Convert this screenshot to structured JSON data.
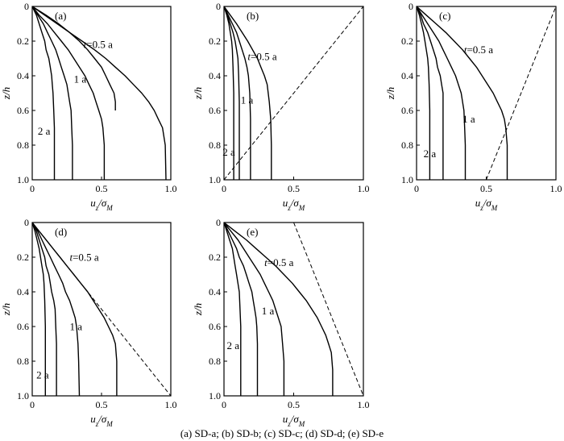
{
  "chart_data": [
    {
      "type": "line",
      "panel_label": "(a)",
      "xlabel": "u_z/σ_M",
      "ylabel": "z/h",
      "xlim": [
        0,
        1.0
      ],
      "ylim": [
        0,
        1.0
      ],
      "y_inverted": true,
      "xticks": [
        "0",
        "0.5",
        "1.0"
      ],
      "yticks": [
        "0",
        "0.2",
        "0.4",
        "0.6",
        "0.8",
        "1.0"
      ],
      "series": [
        {
          "x": [
            0,
            0.1,
            0.19,
            0.27,
            0.34,
            0.4,
            0.45,
            0.5,
            0.53,
            0.56,
            0.59,
            0.6,
            0.6
          ],
          "y": [
            0,
            0.05,
            0.1,
            0.15,
            0.2,
            0.25,
            0.3,
            0.35,
            0.4,
            0.45,
            0.5,
            0.55,
            0.6
          ]
        },
        {
          "x": [
            0,
            0.09,
            0.18,
            0.27,
            0.36,
            0.45,
            0.53,
            0.6,
            0.67,
            0.73,
            0.79,
            0.84,
            0.88,
            0.91,
            0.94,
            0.96,
            0.965
          ],
          "y": [
            0,
            0.05,
            0.1,
            0.15,
            0.2,
            0.25,
            0.3,
            0.35,
            0.4,
            0.45,
            0.5,
            0.55,
            0.6,
            0.65,
            0.7,
            0.8,
            1.0
          ]
        },
        {
          "x": [
            0,
            0.05,
            0.11,
            0.16,
            0.21,
            0.26,
            0.3,
            0.34,
            0.38,
            0.41,
            0.44,
            0.46,
            0.48,
            0.5,
            0.51,
            0.52,
            0.52
          ],
          "y": [
            0,
            0.05,
            0.1,
            0.15,
            0.2,
            0.25,
            0.3,
            0.35,
            0.4,
            0.45,
            0.5,
            0.55,
            0.6,
            0.65,
            0.7,
            0.8,
            1.0
          ]
        },
        {
          "x": [
            0,
            0.04,
            0.08,
            0.11,
            0.14,
            0.17,
            0.19,
            0.21,
            0.23,
            0.25,
            0.26,
            0.27,
            0.28,
            0.285,
            0.29,
            0.29
          ],
          "y": [
            0,
            0.05,
            0.1,
            0.15,
            0.2,
            0.25,
            0.3,
            0.35,
            0.4,
            0.45,
            0.5,
            0.55,
            0.6,
            0.7,
            0.8,
            1.0
          ]
        },
        {
          "x": [
            0,
            0.03,
            0.05,
            0.07,
            0.09,
            0.1,
            0.12,
            0.13,
            0.14,
            0.145,
            0.15,
            0.155,
            0.16,
            0.16
          ],
          "y": [
            0,
            0.05,
            0.1,
            0.15,
            0.2,
            0.25,
            0.3,
            0.35,
            0.4,
            0.45,
            0.5,
            0.6,
            0.7,
            1.0
          ]
        }
      ],
      "series_labels": [
        {
          "text": "t=0.5 a",
          "x": 0.37,
          "y": 0.24
        },
        {
          "text": "1 a",
          "x": 0.3,
          "y": 0.44
        },
        {
          "text": "2 a",
          "x": 0.04,
          "y": 0.74
        }
      ]
    },
    {
      "type": "line",
      "panel_label": "(b)",
      "xlabel": "u_z/σ_M",
      "ylabel": "z/h",
      "xlim": [
        0,
        1.0
      ],
      "ylim": [
        0,
        1.0
      ],
      "y_inverted": true,
      "xticks": [
        "0",
        "0.5",
        "1.0"
      ],
      "yticks": [
        "0",
        "0.2",
        "0.4",
        "0.6",
        "0.8",
        "1.0"
      ],
      "dashed_line": {
        "x": [
          0,
          1.0
        ],
        "y": [
          1.0,
          0
        ]
      },
      "series": [
        {
          "x": [
            0,
            0.045,
            0.09,
            0.13,
            0.17,
            0.205,
            0.24,
            0.265,
            0.29,
            0.31,
            0.325,
            0.335,
            0.34,
            0.34
          ],
          "y": [
            0,
            0.05,
            0.1,
            0.15,
            0.2,
            0.25,
            0.3,
            0.35,
            0.4,
            0.45,
            0.55,
            0.65,
            0.8,
            1.0
          ]
        },
        {
          "x": [
            0,
            0.03,
            0.06,
            0.09,
            0.11,
            0.13,
            0.15,
            0.165,
            0.175,
            0.185,
            0.19,
            0.19
          ],
          "y": [
            0,
            0.05,
            0.1,
            0.15,
            0.2,
            0.25,
            0.3,
            0.35,
            0.4,
            0.5,
            0.65,
            1.0
          ]
        },
        {
          "x": [
            0,
            0.025,
            0.045,
            0.065,
            0.08,
            0.09,
            0.1,
            0.105,
            0.11,
            0.11
          ],
          "y": [
            0,
            0.05,
            0.1,
            0.15,
            0.2,
            0.25,
            0.3,
            0.4,
            0.55,
            1.0
          ]
        },
        {
          "x": [
            0,
            0.02,
            0.035,
            0.045,
            0.055,
            0.06,
            0.065,
            0.07,
            0.07
          ],
          "y": [
            0,
            0.05,
            0.1,
            0.15,
            0.2,
            0.25,
            0.35,
            0.5,
            1.0
          ]
        }
      ],
      "series_labels": [
        {
          "text": "t=0.5 a",
          "x": 0.17,
          "y": 0.31
        },
        {
          "text": "1 a",
          "x": 0.12,
          "y": 0.56
        },
        {
          "text": "2 a",
          "x": -0.01,
          "y": 0.86
        }
      ]
    },
    {
      "type": "line",
      "panel_label": "(c)",
      "xlabel": "u_z/σ_M",
      "ylabel": "z/h",
      "xlim": [
        0,
        1.0
      ],
      "ylim": [
        0,
        1.0
      ],
      "y_inverted": true,
      "xticks": [
        "0",
        "0.5",
        "1.0"
      ],
      "yticks": [
        "0",
        "0.2",
        "0.4",
        "0.6",
        "0.8",
        "1.0"
      ],
      "dashed_line": {
        "x": [
          0.5,
          1.0
        ],
        "y": [
          1.0,
          0
        ]
      },
      "series": [
        {
          "x": [
            0,
            0.07,
            0.14,
            0.21,
            0.27,
            0.33,
            0.38,
            0.43,
            0.47,
            0.51,
            0.55,
            0.58,
            0.61,
            0.63,
            0.64,
            0.65,
            0.65
          ],
          "y": [
            0,
            0.05,
            0.1,
            0.15,
            0.2,
            0.25,
            0.3,
            0.35,
            0.4,
            0.45,
            0.5,
            0.55,
            0.6,
            0.65,
            0.7,
            0.8,
            1.0
          ]
        },
        {
          "x": [
            0,
            0.04,
            0.08,
            0.12,
            0.16,
            0.19,
            0.22,
            0.25,
            0.28,
            0.3,
            0.32,
            0.33,
            0.34,
            0.345,
            0.35,
            0.35
          ],
          "y": [
            0,
            0.05,
            0.1,
            0.15,
            0.2,
            0.25,
            0.3,
            0.35,
            0.4,
            0.45,
            0.5,
            0.55,
            0.6,
            0.7,
            0.8,
            1.0
          ]
        },
        {
          "x": [
            0,
            0.03,
            0.05,
            0.08,
            0.1,
            0.12,
            0.14,
            0.15,
            0.17,
            0.18,
            0.19,
            0.19,
            0.19
          ],
          "y": [
            0,
            0.05,
            0.1,
            0.15,
            0.2,
            0.25,
            0.3,
            0.35,
            0.4,
            0.45,
            0.5,
            0.6,
            1.0
          ]
        },
        {
          "x": [
            0,
            0.02,
            0.035,
            0.05,
            0.06,
            0.07,
            0.08,
            0.085,
            0.09,
            0.095,
            0.095
          ],
          "y": [
            0,
            0.05,
            0.1,
            0.15,
            0.2,
            0.25,
            0.3,
            0.35,
            0.45,
            0.6,
            1.0
          ]
        }
      ],
      "series_labels": [
        {
          "text": "t=0.5 a",
          "x": 0.34,
          "y": 0.27
        },
        {
          "text": "1 a",
          "x": 0.33,
          "y": 0.67
        },
        {
          "text": "2 a",
          "x": 0.05,
          "y": 0.87
        }
      ]
    },
    {
      "type": "line",
      "panel_label": "(d)",
      "xlabel": "u_z/σ_M",
      "ylabel": "z/h",
      "xlim": [
        0,
        1.0
      ],
      "ylim": [
        0,
        1.0
      ],
      "y_inverted": true,
      "xticks": [
        "0",
        "0.5",
        "1.0"
      ],
      "yticks": [
        "0",
        "0.2",
        "0.4",
        "0.6",
        "0.8",
        "1.0"
      ],
      "dashed_line": {
        "x": [
          0,
          1.0
        ],
        "y": [
          0,
          1.0
        ]
      },
      "series": [
        {
          "x": [
            0,
            0.05,
            0.1,
            0.15,
            0.2,
            0.25,
            0.3,
            0.35,
            0.4,
            0.44,
            0.48,
            0.52,
            0.55,
            0.58,
            0.6,
            0.61,
            0.61
          ],
          "y": [
            0,
            0.05,
            0.1,
            0.15,
            0.2,
            0.25,
            0.3,
            0.35,
            0.4,
            0.45,
            0.5,
            0.55,
            0.6,
            0.65,
            0.7,
            0.8,
            1.0
          ]
        },
        {
          "x": [
            0,
            0.04,
            0.07,
            0.1,
            0.13,
            0.16,
            0.19,
            0.22,
            0.24,
            0.27,
            0.29,
            0.31,
            0.32,
            0.33,
            0.335,
            0.34
          ],
          "y": [
            0,
            0.05,
            0.1,
            0.15,
            0.2,
            0.25,
            0.3,
            0.35,
            0.4,
            0.45,
            0.5,
            0.55,
            0.6,
            0.7,
            0.8,
            1.0
          ]
        },
        {
          "x": [
            0,
            0.03,
            0.05,
            0.07,
            0.09,
            0.1,
            0.12,
            0.13,
            0.14,
            0.155,
            0.165,
            0.17,
            0.175,
            0.175
          ],
          "y": [
            0,
            0.05,
            0.1,
            0.15,
            0.2,
            0.25,
            0.3,
            0.35,
            0.4,
            0.45,
            0.5,
            0.6,
            0.7,
            1.0
          ]
        },
        {
          "x": [
            0,
            0.02,
            0.035,
            0.05,
            0.06,
            0.07,
            0.08,
            0.085,
            0.09,
            0.095,
            0.095
          ],
          "y": [
            0,
            0.05,
            0.1,
            0.15,
            0.2,
            0.25,
            0.3,
            0.35,
            0.45,
            0.6,
            1.0
          ]
        }
      ],
      "series_labels": [
        {
          "text": "t=0.5 a",
          "x": 0.27,
          "y": 0.22
        },
        {
          "text": "1 a",
          "x": 0.27,
          "y": 0.62
        },
        {
          "text": "2 a",
          "x": 0.03,
          "y": 0.9
        }
      ]
    },
    {
      "type": "line",
      "panel_label": "(e)",
      "xlabel": "u_z/σ_M",
      "ylabel": "z/h",
      "xlim": [
        0,
        1.0
      ],
      "ylim": [
        0,
        1.0
      ],
      "y_inverted": true,
      "xticks": [
        "0",
        "0.5",
        "1.0"
      ],
      "yticks": [
        "0",
        "0.2",
        "0.4",
        "0.6",
        "0.8",
        "1.0"
      ],
      "dashed_line": {
        "x": [
          0.5,
          1.0
        ],
        "y": [
          0,
          1.0
        ]
      },
      "series": [
        {
          "x": [
            0,
            0.08,
            0.16,
            0.23,
            0.3,
            0.37,
            0.43,
            0.49,
            0.54,
            0.59,
            0.63,
            0.67,
            0.7,
            0.73,
            0.75,
            0.77,
            0.78,
            0.78
          ],
          "y": [
            0,
            0.05,
            0.1,
            0.15,
            0.2,
            0.25,
            0.3,
            0.35,
            0.4,
            0.45,
            0.5,
            0.55,
            0.6,
            0.65,
            0.7,
            0.75,
            0.85,
            1.0
          ]
        },
        {
          "x": [
            0,
            0.05,
            0.1,
            0.14,
            0.18,
            0.22,
            0.26,
            0.29,
            0.32,
            0.35,
            0.37,
            0.39,
            0.41,
            0.42,
            0.43,
            0.43
          ],
          "y": [
            0,
            0.05,
            0.1,
            0.15,
            0.2,
            0.25,
            0.3,
            0.35,
            0.4,
            0.45,
            0.5,
            0.55,
            0.6,
            0.7,
            0.8,
            1.0
          ]
        },
        {
          "x": [
            0,
            0.03,
            0.06,
            0.09,
            0.11,
            0.14,
            0.16,
            0.18,
            0.2,
            0.21,
            0.22,
            0.23,
            0.235,
            0.24,
            0.24
          ],
          "y": [
            0,
            0.05,
            0.1,
            0.15,
            0.2,
            0.25,
            0.3,
            0.35,
            0.4,
            0.45,
            0.5,
            0.55,
            0.6,
            0.7,
            1.0
          ]
        },
        {
          "x": [
            0,
            0.02,
            0.04,
            0.06,
            0.07,
            0.08,
            0.09,
            0.1,
            0.11,
            0.115,
            0.12,
            0.12
          ],
          "y": [
            0,
            0.05,
            0.1,
            0.15,
            0.2,
            0.25,
            0.3,
            0.35,
            0.4,
            0.5,
            0.6,
            1.0
          ]
        }
      ],
      "series_labels": [
        {
          "text": "t=0.5 a",
          "x": 0.29,
          "y": 0.25
        },
        {
          "text": "1 a",
          "x": 0.27,
          "y": 0.53
        },
        {
          "text": "2 a",
          "x": 0.02,
          "y": 0.73
        }
      ]
    }
  ],
  "caption": "(a)   SD-a;   (b)   SD-b;   (c)   SD-c; (d) SD-d; (e) SD-e"
}
